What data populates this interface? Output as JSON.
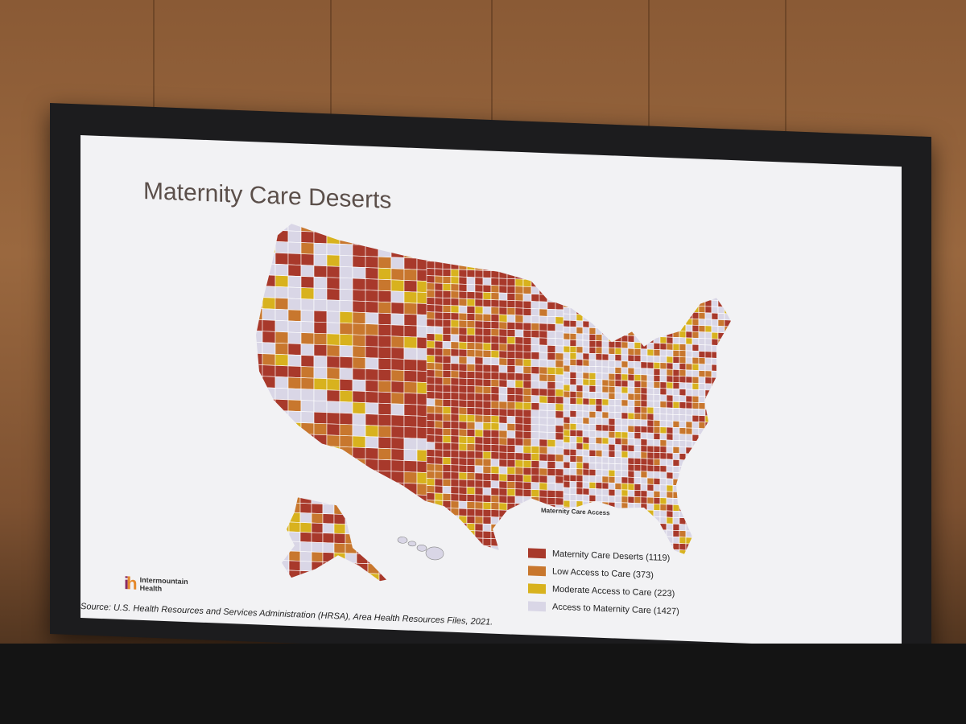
{
  "slide": {
    "title": "Maternity Care Deserts",
    "inline_label": "Maternity Care Access",
    "source": "Source: U.S. Health Resources and Services Administration (HRSA), Area Health Resources Files, 2021."
  },
  "logo": {
    "line1": "Intermountain",
    "line2": "Health"
  },
  "legend": [
    {
      "label": "Maternity Care Deserts (1119)",
      "color": "#a8392b"
    },
    {
      "label": "Low Access to Care (373)",
      "color": "#c8772e"
    },
    {
      "label": "Moderate Access to Care (223)",
      "color": "#d8b21e"
    },
    {
      "label": "Access to Maternity Care (1427)",
      "color": "#d9d6e6"
    }
  ],
  "colors": {
    "desert": "#a8392b",
    "low": "#c8772e",
    "moderate": "#d8b21e",
    "access": "#d9d6e6",
    "border": "#ffffff"
  }
}
